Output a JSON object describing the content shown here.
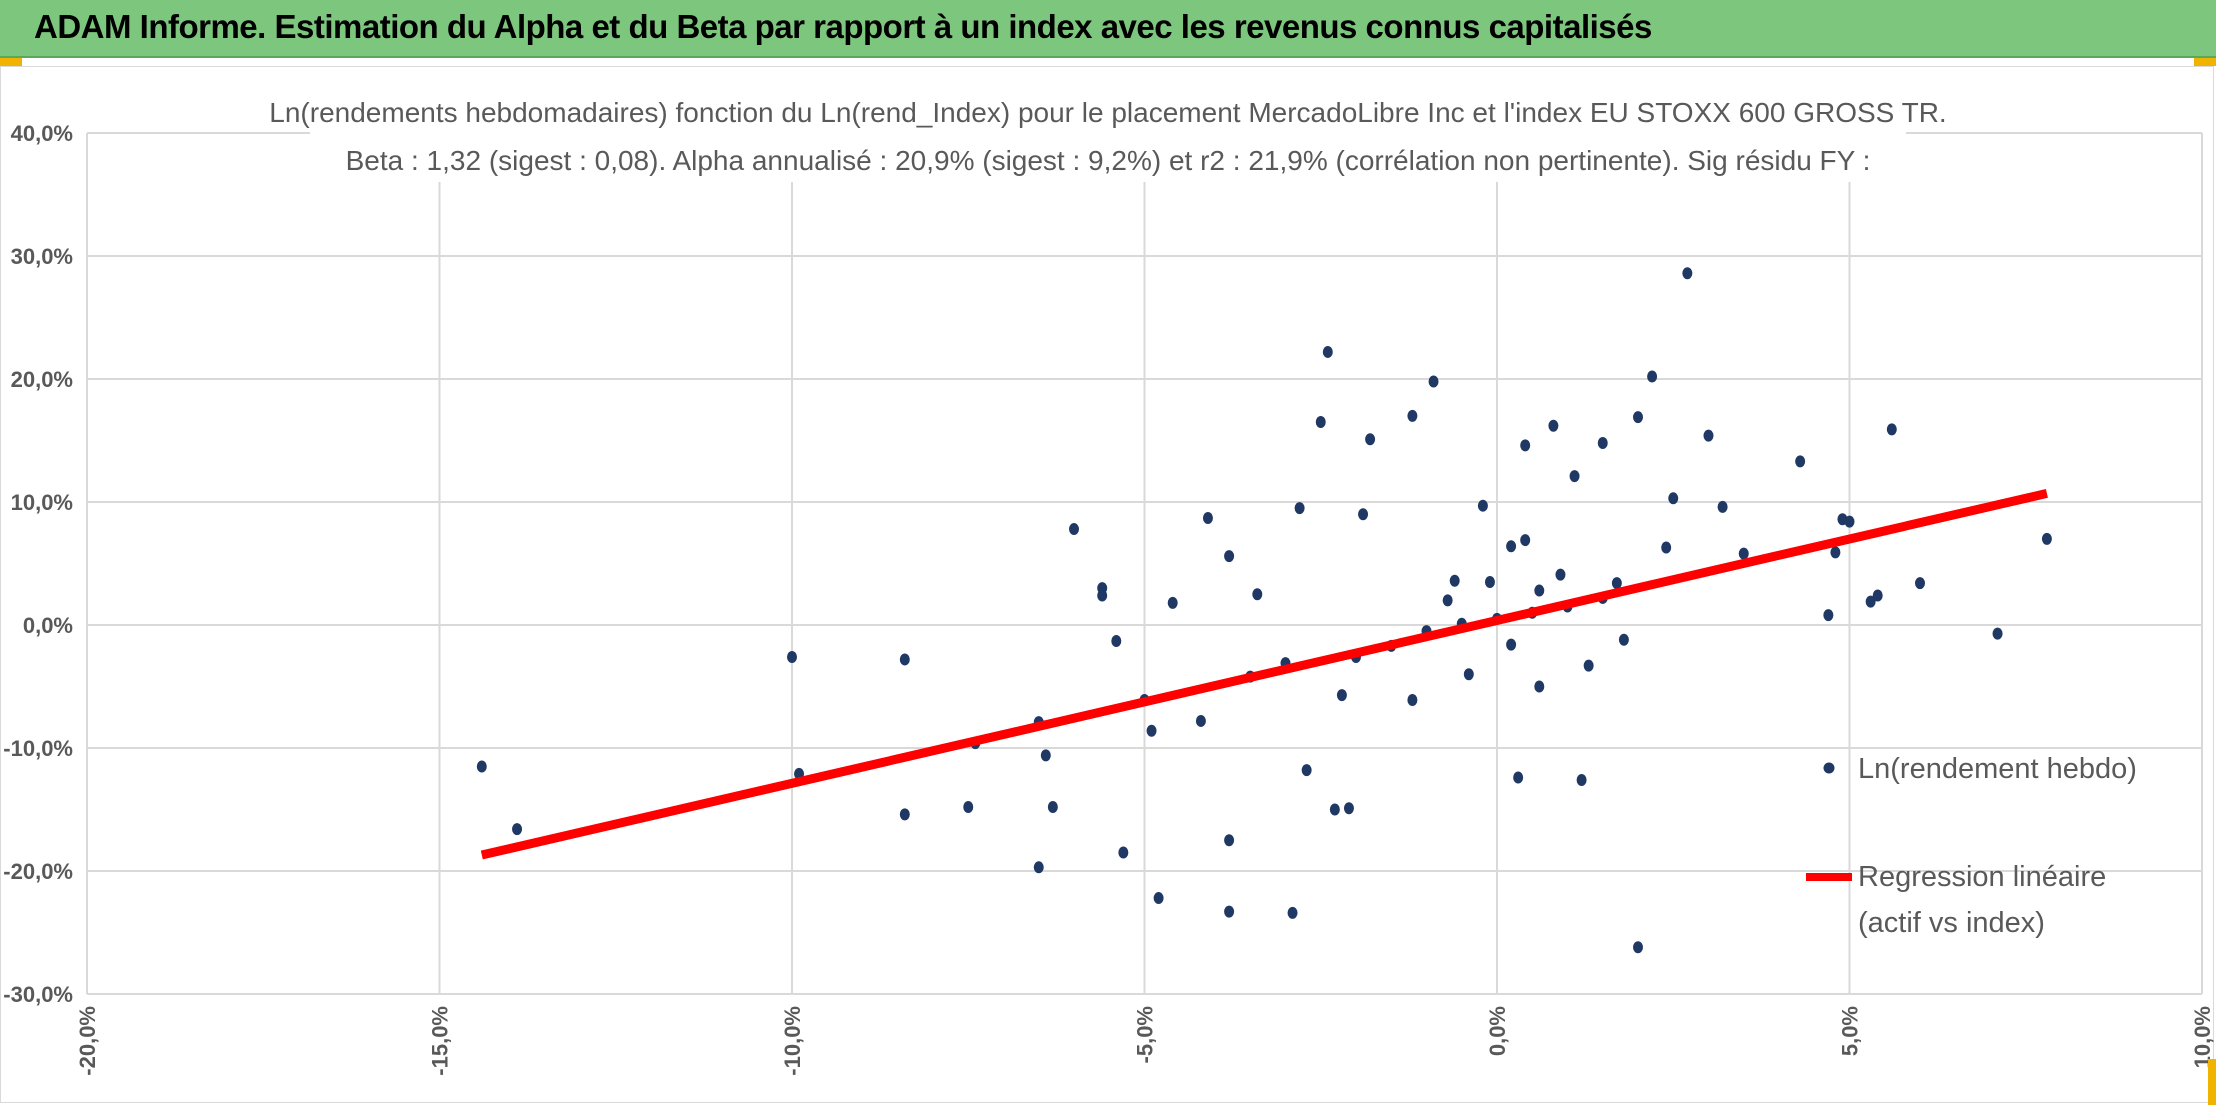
{
  "banner": {
    "title": "ADAM Informe. Estimation du Alpha et du Beta par rapport à un index avec les revenus connus capitalisés"
  },
  "colors": {
    "banner": "#7dc67d",
    "points": "#1f3864",
    "regression": "#ff0000",
    "grid": "#d9d9d9",
    "accent_corner": "#f0b400"
  },
  "chart_data": {
    "type": "scatter",
    "title_line1": "Ln(rendements hebdomadaires) fonction du Ln(rend_Index) pour le placement MercadoLibre Inc et l'index EU STOXX 600 GROSS TR.",
    "title_line2": "Beta : 1,32 (sigest : 0,08). Alpha annualisé : 20,9% (sigest : 9,2%) et r2 : 21,9% (corrélation non pertinente). Sig résidu FY :",
    "xlabel": "",
    "ylabel": "",
    "xlim": [
      -20,
      10
    ],
    "ylim": [
      -30,
      40
    ],
    "x_ticks": [
      "-20,0%",
      "-15,0%",
      "-10,0%",
      "-5,0%",
      "0,0%",
      "5,0%",
      "10,0%"
    ],
    "y_ticks": [
      "40,0%",
      "30,0%",
      "20,0%",
      "10,0%",
      "0,0%",
      "-10,0%",
      "-20,0%",
      "-30,0%"
    ],
    "grid": true,
    "legend_position": "right",
    "series": [
      {
        "name": "Ln(rendement hebdo)",
        "kind": "scatter",
        "points": [
          [
            -14.4,
            -11.5
          ],
          [
            -13.9,
            -16.6
          ],
          [
            -10.0,
            -2.6
          ],
          [
            -9.9,
            -12.1
          ],
          [
            -8.4,
            -2.8
          ],
          [
            -8.4,
            -15.4
          ],
          [
            -7.5,
            -14.8
          ],
          [
            -7.4,
            -9.6
          ],
          [
            -6.5,
            -7.9
          ],
          [
            -6.5,
            -19.7
          ],
          [
            -6.4,
            -10.6
          ],
          [
            -6.3,
            -14.8
          ],
          [
            -6.0,
            7.8
          ],
          [
            -5.6,
            3.0
          ],
          [
            -5.6,
            2.4
          ],
          [
            -5.4,
            -1.3
          ],
          [
            -5.3,
            -18.5
          ],
          [
            -5.0,
            -6.1
          ],
          [
            -4.9,
            -8.6
          ],
          [
            -4.8,
            -22.2
          ],
          [
            -4.6,
            1.8
          ],
          [
            -4.2,
            -7.8
          ],
          [
            -4.1,
            8.7
          ],
          [
            -3.8,
            5.6
          ],
          [
            -3.8,
            -17.5
          ],
          [
            -3.8,
            -23.3
          ],
          [
            -3.5,
            -4.2
          ],
          [
            -3.4,
            2.5
          ],
          [
            -2.9,
            -23.4
          ],
          [
            -2.8,
            9.5
          ],
          [
            -2.7,
            -11.8
          ],
          [
            -2.5,
            16.5
          ],
          [
            -2.4,
            22.2
          ],
          [
            -2.3,
            -15.0
          ],
          [
            -2.1,
            -14.9
          ],
          [
            -1.9,
            9.0
          ],
          [
            -1.8,
            15.1
          ],
          [
            -1.2,
            17.0
          ],
          [
            -0.9,
            19.8
          ],
          [
            -0.6,
            3.6
          ],
          [
            -0.4,
            -4.0
          ],
          [
            -0.2,
            9.7
          ],
          [
            0.2,
            6.4
          ],
          [
            0.3,
            -12.4
          ],
          [
            0.4,
            14.6
          ],
          [
            0.6,
            2.8
          ],
          [
            0.8,
            16.2
          ],
          [
            1.1,
            12.1
          ],
          [
            1.2,
            -12.6
          ],
          [
            1.5,
            14.8
          ],
          [
            1.7,
            3.4
          ],
          [
            2.0,
            16.9
          ],
          [
            2.0,
            -26.2
          ],
          [
            2.2,
            20.2
          ],
          [
            2.5,
            10.3
          ],
          [
            2.7,
            28.6
          ],
          [
            3.0,
            15.4
          ],
          [
            3.2,
            9.6
          ],
          [
            3.5,
            5.8
          ],
          [
            4.3,
            13.3
          ],
          [
            4.7,
            0.8
          ],
          [
            4.8,
            5.9
          ],
          [
            4.9,
            8.6
          ],
          [
            5.0,
            8.4
          ],
          [
            5.3,
            1.9
          ],
          [
            5.4,
            2.4
          ],
          [
            5.6,
            15.9
          ],
          [
            6.0,
            3.4
          ],
          [
            7.1,
            -0.7
          ],
          [
            7.8,
            7.0
          ],
          [
            -3.0,
            -3.1
          ],
          [
            -2.0,
            -2.6
          ],
          [
            -1.5,
            -1.7
          ],
          [
            -1.0,
            -0.5
          ],
          [
            -0.5,
            0.1
          ],
          [
            0.0,
            0.5
          ],
          [
            0.5,
            1.0
          ],
          [
            1.0,
            1.5
          ],
          [
            1.5,
            2.2
          ],
          [
            0.2,
            -1.6
          ],
          [
            0.9,
            4.1
          ],
          [
            -0.7,
            2.0
          ],
          [
            1.3,
            -3.3
          ],
          [
            0.6,
            -5.0
          ],
          [
            -1.2,
            -6.1
          ],
          [
            2.4,
            6.3
          ],
          [
            -0.1,
            3.5
          ],
          [
            1.8,
            -1.2
          ],
          [
            -2.2,
            -5.7
          ],
          [
            0.4,
            6.9
          ]
        ]
      },
      {
        "name": "Regression linéaire",
        "name_line2": "(actif vs index)",
        "kind": "line",
        "points": [
          [
            -14.4,
            -18.7
          ],
          [
            7.8,
            10.7
          ]
        ]
      }
    ]
  }
}
